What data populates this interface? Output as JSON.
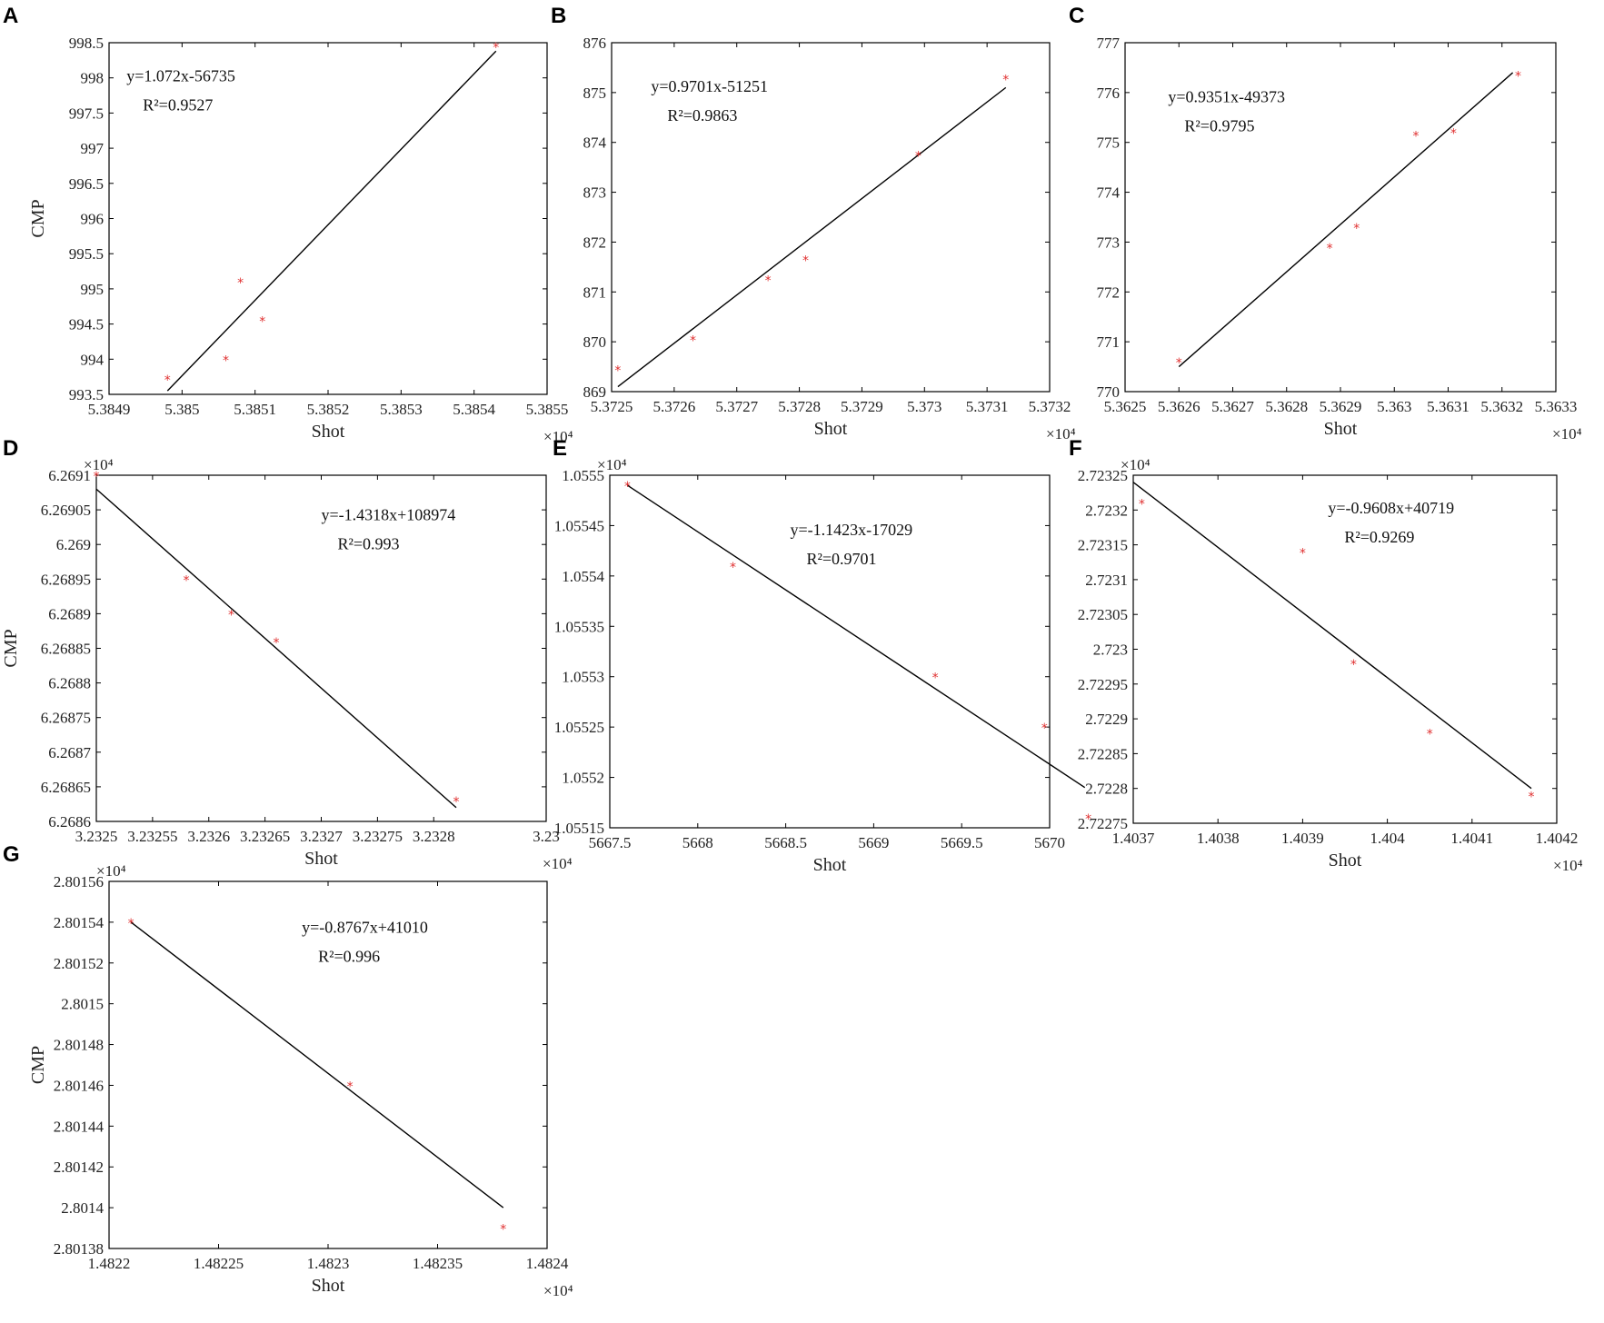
{
  "marker_color": "#e03030",
  "line_color": "#000000",
  "chart_data": [
    {
      "type": "scatter",
      "panel": "A",
      "xlabel": "Shot",
      "ylabel": "CMP",
      "x_exponent": "×10⁴",
      "y_exponent": "",
      "xlim": [
        5.3849,
        5.3855
      ],
      "ylim": [
        993.5,
        998.5
      ],
      "xticks": [
        5.3849,
        5.385,
        5.3851,
        5.3852,
        5.3853,
        5.3854,
        5.3855
      ],
      "xtick_labels": [
        "5.3849",
        "5.385",
        "5.3851",
        "5.3852",
        "5.3853",
        "5.3854",
        "5.3855"
      ],
      "yticks": [
        993.5,
        994,
        994.5,
        995,
        995.5,
        996,
        996.5,
        997,
        997.5,
        998,
        998.5
      ],
      "ytick_labels": [
        "993.5",
        "994",
        "994.5",
        "995",
        "995.5",
        "996",
        "996.5",
        "997",
        "997.5",
        "998",
        "998.5"
      ],
      "equation": "y=1.072x-56735",
      "r2_label": "R²=0.9527",
      "points": [
        [
          5.38498,
          993.72
        ],
        [
          5.38506,
          994.0
        ],
        [
          5.38508,
          995.1
        ],
        [
          5.38511,
          994.55
        ],
        [
          5.38543,
          998.45
        ]
      ],
      "fit_line": [
        [
          5.38498,
          993.55
        ],
        [
          5.38543,
          998.38
        ]
      ]
    },
    {
      "type": "scatter",
      "panel": "B",
      "xlabel": "Shot",
      "ylabel": "",
      "x_exponent": "×10⁴",
      "y_exponent": "",
      "xlim": [
        5.3725,
        5.3732
      ],
      "ylim": [
        869,
        876
      ],
      "xticks": [
        5.3725,
        5.3726,
        5.3727,
        5.3728,
        5.3729,
        5.373,
        5.3731,
        5.3732
      ],
      "xtick_labels": [
        "5.3725",
        "5.3726",
        "5.3727",
        "5.3728",
        "5.3729",
        "5.373",
        "5.3731",
        "5.3732"
      ],
      "yticks": [
        869,
        870,
        871,
        872,
        873,
        874,
        875,
        876
      ],
      "ytick_labels": [
        "869",
        "870",
        "871",
        "872",
        "873",
        "874",
        "875",
        "876"
      ],
      "equation": "y=0.9701x-51251",
      "r2_label": "R²=0.9863",
      "points": [
        [
          5.37251,
          869.45
        ],
        [
          5.37263,
          870.05
        ],
        [
          5.37275,
          871.25
        ],
        [
          5.37281,
          871.65
        ],
        [
          5.37299,
          873.75
        ],
        [
          5.37313,
          875.28
        ]
      ],
      "fit_line": [
        [
          5.37251,
          869.1
        ],
        [
          5.37313,
          875.1
        ]
      ]
    },
    {
      "type": "scatter",
      "panel": "C",
      "xlabel": "Shot",
      "ylabel": "",
      "x_exponent": "×10⁴",
      "y_exponent": "",
      "xlim": [
        5.3625,
        5.3633
      ],
      "ylim": [
        770,
        777
      ],
      "xticks": [
        5.3625,
        5.3626,
        5.3627,
        5.3628,
        5.3629,
        5.363,
        5.3631,
        5.3632,
        5.3633
      ],
      "xtick_labels": [
        "5.3625",
        "5.3626",
        "5.3627",
        "5.3628",
        "5.3629",
        "5.363",
        "5.3631",
        "5.3632",
        "5.3633"
      ],
      "yticks": [
        770,
        771,
        772,
        773,
        774,
        775,
        776,
        777
      ],
      "ytick_labels": [
        "770",
        "771",
        "772",
        "773",
        "774",
        "775",
        "776",
        "777"
      ],
      "equation": "y=0.9351x-49373",
      "r2_label": "R²=0.9795",
      "points": [
        [
          5.3626,
          770.6
        ],
        [
          5.36288,
          772.9
        ],
        [
          5.36293,
          773.3
        ],
        [
          5.36304,
          775.15
        ],
        [
          5.36311,
          775.2
        ],
        [
          5.36323,
          776.35
        ]
      ],
      "fit_line": [
        [
          5.3626,
          770.5
        ],
        [
          5.36322,
          776.4
        ]
      ]
    },
    {
      "type": "scatter",
      "panel": "D",
      "xlabel": "Shot",
      "ylabel": "CMP",
      "x_exponent": "×10⁴",
      "y_exponent": "×10⁴",
      "xlim": [
        3.2325,
        3.2329
      ],
      "ylim": [
        6.2686,
        6.2691
      ],
      "xticks": [
        3.2325,
        3.23255,
        3.2326,
        3.23265,
        3.2327,
        3.23275,
        3.2328,
        3.2329
      ],
      "xtick_labels": [
        "3.2325",
        "3.23255",
        "3.2326",
        "3.23265",
        "3.2327",
        "3.23275",
        "3.2328",
        "3.23"
      ],
      "yticks": [
        6.2686,
        6.26865,
        6.2687,
        6.26875,
        6.2688,
        6.26885,
        6.2689,
        6.26895,
        6.269,
        6.26905,
        6.2691
      ],
      "ytick_labels": [
        "6.2686",
        "6.26865",
        "6.2687",
        "6.26875",
        "6.2688",
        "6.26885",
        "6.2689",
        "6.26895",
        "6.269",
        "6.26905",
        "6.2691"
      ],
      "equation": "y=-1.4318x+108974",
      "r2_label": "R²=0.993",
      "points": [
        [
          3.2325,
          6.2691
        ],
        [
          3.23258,
          6.26895
        ],
        [
          3.23262,
          6.2689
        ],
        [
          3.23266,
          6.26886
        ],
        [
          3.23282,
          6.26863
        ]
      ],
      "fit_line": [
        [
          3.2325,
          6.26908
        ],
        [
          3.23282,
          6.26862
        ]
      ]
    },
    {
      "type": "scatter",
      "panel": "E",
      "xlabel": "Shot",
      "ylabel": "",
      "x_exponent": "",
      "y_exponent": "×10⁴",
      "xlim": [
        5667.5,
        5670
      ],
      "ylim": [
        1.05515,
        1.0555
      ],
      "xticks": [
        5667.5,
        5668,
        5668.5,
        5669,
        5669.5,
        5670
      ],
      "xtick_labels": [
        "5667.5",
        "5668",
        "5668.5",
        "5669",
        "5669.5",
        "5670"
      ],
      "xticks_right_label": "5670",
      "yticks": [
        1.05515,
        1.0552,
        1.05525,
        1.0553,
        1.05535,
        1.0554,
        1.05545,
        1.0555
      ],
      "ytick_labels": [
        "1.05515",
        "1.0552",
        "1.05525",
        "1.0553",
        "1.05535",
        "1.0554",
        "1.05545",
        "1.0555"
      ],
      "equation": "y=-1.1423x-17029",
      "r2_label": "R²=0.9701",
      "points": [
        [
          5667.6,
          1.05549
        ],
        [
          5668.2,
          1.05541
        ],
        [
          5669.35,
          1.0553
        ],
        [
          5669.97,
          1.05525
        ],
        [
          5670.22,
          1.05516
        ]
      ],
      "fit_line": [
        [
          5667.6,
          1.05549
        ],
        [
          5670.2,
          1.05519
        ]
      ]
    },
    {
      "type": "scatter",
      "panel": "F",
      "xlabel": "Shot",
      "ylabel": "",
      "x_exponent": "×10⁴",
      "y_exponent": "×10⁴",
      "xlim": [
        1.4037,
        1.4042
      ],
      "ylim": [
        2.72275,
        2.72325
      ],
      "xticks": [
        1.4037,
        1.4038,
        1.4039,
        1.404,
        1.4041,
        1.4042
      ],
      "xtick_labels": [
        "1.4037",
        "1.4038",
        "1.4039",
        "1.404",
        "1.4041",
        "1.4042"
      ],
      "yticks": [
        2.72275,
        2.7228,
        2.72285,
        2.7229,
        2.72295,
        2.723,
        2.72305,
        2.7231,
        2.72315,
        2.7232,
        2.72325
      ],
      "ytick_labels": [
        "2.72275",
        "2.7228",
        "2.72285",
        "2.7229",
        "2.72295",
        "2.723",
        "2.72305",
        "2.7231",
        "2.72315",
        "2.7232",
        "2.72325"
      ],
      "equation": "y=-0.9608x+40719",
      "r2_label": "R²=0.9269",
      "points": [
        [
          1.40371,
          2.72321
        ],
        [
          1.4039,
          2.72314
        ],
        [
          1.40396,
          2.72298
        ],
        [
          1.40405,
          2.72288
        ],
        [
          1.40417,
          2.72279
        ]
      ],
      "fit_line": [
        [
          1.4037,
          2.72324
        ],
        [
          1.40417,
          2.7228
        ]
      ]
    },
    {
      "type": "scatter",
      "panel": "G",
      "xlabel": "Shot",
      "ylabel": "CMP",
      "x_exponent": "×10⁴",
      "y_exponent": "×10⁴",
      "xlim": [
        1.4822,
        1.4824
      ],
      "ylim": [
        2.80138,
        2.80156
      ],
      "xticks": [
        1.4822,
        1.48225,
        1.4823,
        1.48235,
        1.4824
      ],
      "xtick_labels": [
        "1.4822",
        "1.48225",
        "1.4823",
        "1.48235",
        "1.4824"
      ],
      "yticks": [
        2.80138,
        2.8014,
        2.80142,
        2.80144,
        2.80146,
        2.80148,
        2.8015,
        2.80152,
        2.80154,
        2.80156
      ],
      "ytick_labels": [
        "2.80138",
        "2.8014",
        "2.80142",
        "2.80144",
        "2.80146",
        "2.80148",
        "2.8015",
        "2.80152",
        "2.80154",
        "2.80156"
      ],
      "equation": "y=-0.8767x+41010",
      "r2_label": "R²=0.996",
      "points": [
        [
          1.48221,
          2.80154
        ],
        [
          1.48231,
          2.80146
        ],
        [
          1.48238,
          2.80139
        ]
      ],
      "fit_line": [
        [
          1.48221,
          2.80154
        ],
        [
          1.48238,
          2.8014
        ]
      ]
    }
  ]
}
